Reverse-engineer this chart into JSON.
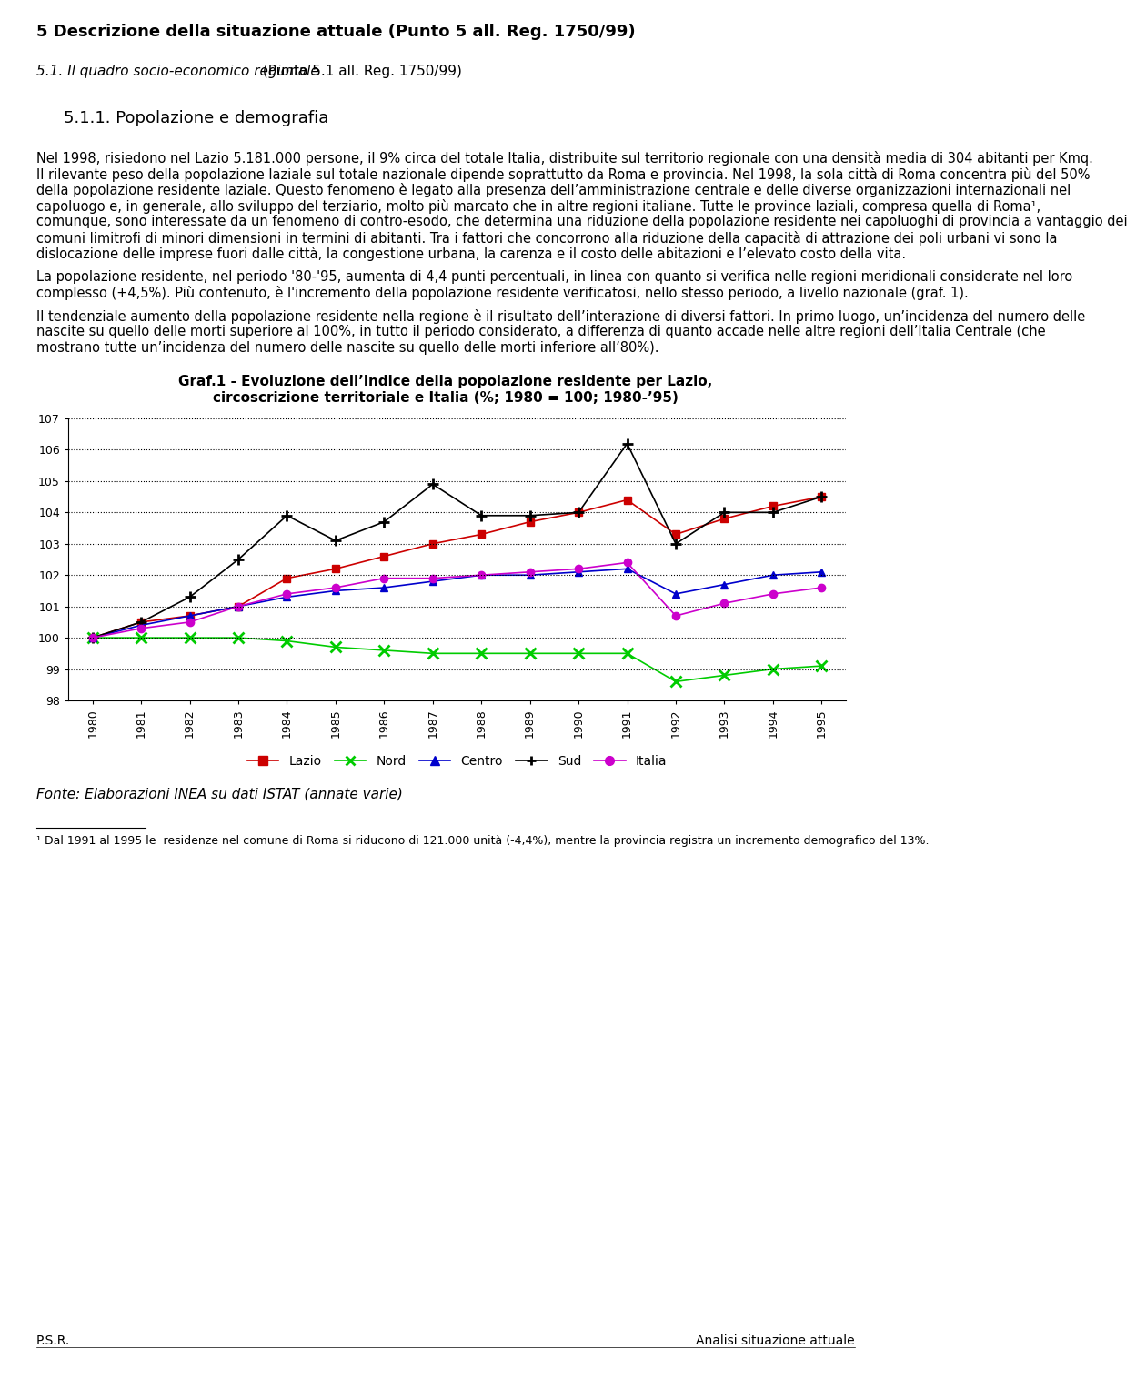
{
  "years": [
    1980,
    1981,
    1982,
    1983,
    1984,
    1985,
    1986,
    1987,
    1988,
    1989,
    1990,
    1991,
    1992,
    1993,
    1994,
    1995
  ],
  "lazio": [
    100.0,
    100.5,
    100.7,
    101.0,
    101.9,
    102.2,
    102.6,
    103.0,
    103.3,
    103.7,
    104.0,
    104.4,
    103.3,
    103.8,
    104.2,
    104.5
  ],
  "nord": [
    100.0,
    100.0,
    100.0,
    100.0,
    99.9,
    99.7,
    99.6,
    99.5,
    99.5,
    99.5,
    99.5,
    99.5,
    98.6,
    98.8,
    99.0,
    99.1
  ],
  "centro": [
    100.0,
    100.4,
    100.7,
    101.0,
    101.3,
    101.5,
    101.6,
    101.8,
    102.0,
    102.0,
    102.1,
    102.2,
    101.4,
    101.7,
    102.0,
    102.1
  ],
  "sud": [
    100.0,
    100.5,
    101.3,
    102.5,
    103.9,
    103.1,
    103.7,
    104.9,
    103.9,
    103.9,
    104.0,
    106.2,
    103.0,
    104.0,
    104.0,
    104.5
  ],
  "italia": [
    100.0,
    100.3,
    100.5,
    101.0,
    101.4,
    101.6,
    101.9,
    101.9,
    102.0,
    102.1,
    102.2,
    102.4,
    100.7,
    101.1,
    101.4,
    101.6
  ],
  "ylim": [
    98,
    107
  ],
  "yticks": [
    98,
    99,
    100,
    101,
    102,
    103,
    104,
    105,
    106,
    107
  ],
  "title_line1": "Graf.1 - Evoluzione dell’indice della popolazione residente per Lazio,",
  "title_line2": "circoscrizione territoriale e Italia (%; 1980 = 100; 1980-’95)",
  "legend_labels": [
    "Lazio",
    "Nord",
    "Centro",
    "Sud",
    "Italia"
  ],
  "lazio_color": "#cc0000",
  "nord_color": "#00cc00",
  "centro_color": "#0000cc",
  "sud_color": "#000000",
  "italia_color": "#cc00cc",
  "fonte": "Fonte: Elaborazioni INEA su dati ISTAT (annate varie)",
  "heading1": "5 Descrizione della situazione attuale (Punto 5 all. Reg. 1750/99)",
  "heading2_italic": "5.1. Il quadro socio-economico regionale",
  "heading2_normal": " (Punto 5.1 all. Reg. 1750/99)",
  "heading3": "5.1.1. Popolazione e demografia",
  "para1": "Nel 1998, risiedono nel Lazio 5.181.000 persone, il 9% circa del totale Italia, distribuite sul territorio regionale con una densità media di 304 abitanti per Kmq. Il rilevante peso della popolazione laziale sul totale nazionale dipende soprattutto da Roma e provincia. Nel 1998, la sola città di Roma concentra più del 50% della popolazione residente laziale. Questo fenomeno è legato alla presenza dell’amministrazione centrale e delle diverse organizzazioni internazionali nel capoluogo e, in generale, allo sviluppo del terziario, molto più marcato che in altre regioni italiane. Tutte le province laziali, compresa quella di Roma¹, comunque, sono interessate da un fenomeno di contro-esodo, che determina una riduzione della popolazione residente nei capoluoghi di provincia a vantaggio dei comuni limitrofi di minori dimensioni in termini di abitanti. Tra i fattori che concorrono alla riduzione della capacità di attrazione dei poli urbani vi sono la dislocazione delle imprese fuori dalle città, la congestione urbana, la carenza e il costo delle abitazioni e l’elevato costo della vita.",
  "para2": "La popolazione residente, nel periodo '80-'95, aumenta di 4,4 punti percentuali, in linea con quanto si verifica nelle regioni meridionali considerate nel loro complesso (+4,5%). Più contenuto, è l'incremento della popolazione residente verificatosi, nello stesso periodo, a livello nazionale (graf. 1).",
  "para3": "Il tendenziale aumento della popolazione residente nella regione è il risultato dell’interazione di diversi fattori. In primo luogo, un’incidenza del numero delle nascite su quello delle morti superiore al 100%, in tutto il periodo considerato, a differenza di quanto accade nelle altre regioni dell’Italia Centrale (che mostrano tutte un’incidenza del numero delle nascite su quello delle morti inferiore all’80%).",
  "footnote": "¹ Dal 1991 al 1995 le  residenze nel comune di Roma si riducono di 121.000 unità (-4,4%), mentre la provincia registra un incremento demografico del 13%.",
  "footer_left": "P.S.R.",
  "footer_right": "Analisi situazione attuale"
}
